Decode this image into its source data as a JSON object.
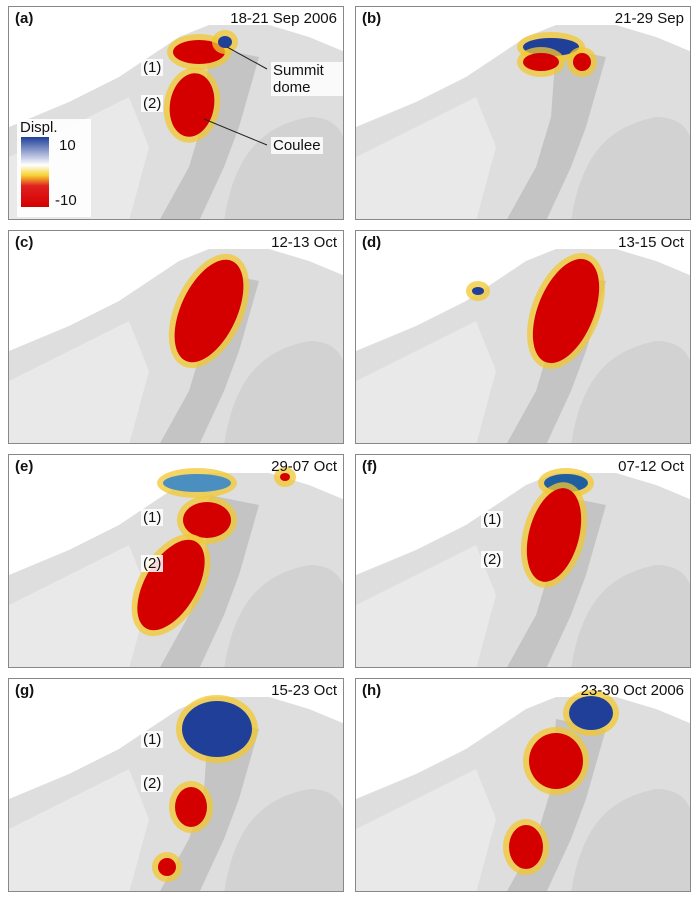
{
  "panels": [
    {
      "label": "(a)",
      "date": "18-21 Sep 2006",
      "annotations": [
        "(1)",
        "(2)",
        "Summit dome",
        "Coulee"
      ],
      "legend": {
        "title": "Displ.",
        "max": "10",
        "min": "-10"
      }
    },
    {
      "label": "(b)",
      "date": "21-29 Sep"
    },
    {
      "label": "(c)",
      "date": "12-13 Oct"
    },
    {
      "label": "(d)",
      "date": "13-15 Oct"
    },
    {
      "label": "(e)",
      "date": "29-07 Oct",
      "annotations": [
        "(1)",
        "(2)"
      ]
    },
    {
      "label": "(f)",
      "date": "07-12 Oct",
      "annotations": [
        "(1)",
        "(2)"
      ]
    },
    {
      "label": "(g)",
      "date": "15-23 Oct",
      "annotations": [
        "(1)",
        "(2)"
      ]
    },
    {
      "label": "(h)",
      "date": "23-30 Oct 2006"
    }
  ]
}
